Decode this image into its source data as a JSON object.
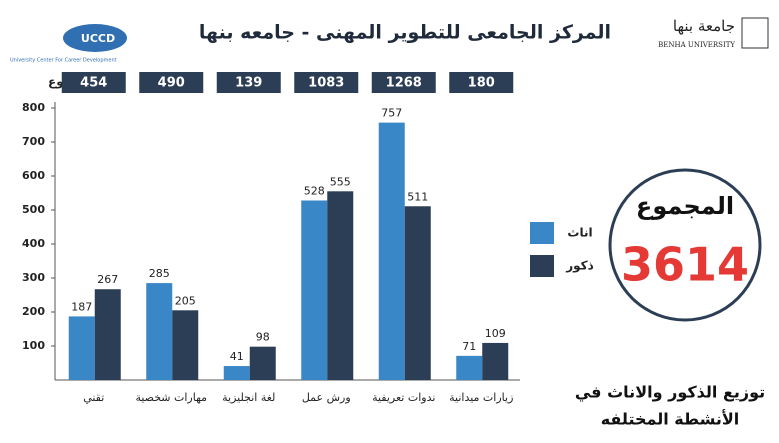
{
  "chart_data": {
    "type": "bar",
    "title": "المركز الجامعى للتطوير المهنى - جامعه بنها",
    "categories": [
      "تقني",
      "مهارات شخصية",
      "لغة انجليزية",
      "ورش عمل",
      "ندوات تعريفية",
      "زيارات ميدانية"
    ],
    "series": [
      {
        "name": "اناث",
        "color": "#3a87c8",
        "values": [
          187,
          285,
          41,
          528,
          757,
          71
        ]
      },
      {
        "name": "ذكور",
        "color": "#2c3e55",
        "values": [
          267,
          205,
          98,
          555,
          511,
          109
        ]
      }
    ],
    "totals_label": "المجموع",
    "totals": [
      454,
      490,
      139,
      1083,
      1268,
      180
    ],
    "ylim": [
      0,
      800
    ],
    "yticks": [
      100,
      200,
      300,
      400,
      500,
      600,
      700,
      800
    ],
    "grand_total_label": "المجموع",
    "grand_total": 3614,
    "caption": [
      "توزيع الذكور والاناث في",
      "الأنشطة المختلفه"
    ],
    "logo_left": {
      "name": "UCCD",
      "text": "University Center For Career Development"
    },
    "logo_right": {
      "arabic": "جامعة بنها",
      "english": "BENHA UNIVERSITY"
    }
  }
}
